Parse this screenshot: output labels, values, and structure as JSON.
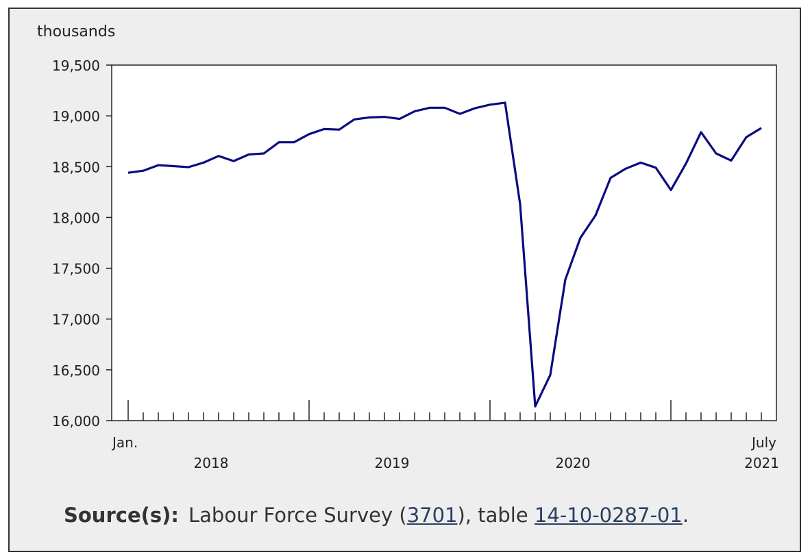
{
  "chart_data": {
    "type": "line",
    "title": "",
    "unit_label": "thousands",
    "ylim": [
      16000,
      19500
    ],
    "yticks": [
      16000,
      16500,
      17000,
      17500,
      18000,
      18500,
      19000,
      19500
    ],
    "ytick_labels": [
      "16,000",
      "16,500",
      "17,000",
      "17,500",
      "18,000",
      "18,500",
      "19,000",
      "19,500"
    ],
    "x_start": "2018-01",
    "x_end": "2021-07",
    "x_labels": {
      "first_month": "Jan.",
      "last_month": "July",
      "years": [
        "2018",
        "2019",
        "2020",
        "2021"
      ]
    },
    "series": [
      {
        "color": "#0b0b80",
        "x": [
          "2018-01",
          "2018-02",
          "2018-03",
          "2018-04",
          "2018-05",
          "2018-06",
          "2018-07",
          "2018-08",
          "2018-09",
          "2018-10",
          "2018-11",
          "2018-12",
          "2019-01",
          "2019-02",
          "2019-03",
          "2019-04",
          "2019-05",
          "2019-06",
          "2019-07",
          "2019-08",
          "2019-09",
          "2019-10",
          "2019-11",
          "2019-12",
          "2020-01",
          "2020-02",
          "2020-03",
          "2020-04",
          "2020-05",
          "2020-06",
          "2020-07",
          "2020-08",
          "2020-09",
          "2020-10",
          "2020-11",
          "2020-12",
          "2021-01",
          "2021-02",
          "2021-03",
          "2021-04",
          "2021-05",
          "2021-06",
          "2021-07"
        ],
        "values": [
          18440,
          18460,
          18515,
          18505,
          18495,
          18540,
          18605,
          18555,
          18620,
          18630,
          18740,
          18740,
          18820,
          18870,
          18865,
          18965,
          18985,
          18990,
          18970,
          19045,
          19080,
          19080,
          19020,
          19075,
          19110,
          19130,
          18130,
          16140,
          16450,
          17390,
          17800,
          18020,
          18390,
          18480,
          18540,
          18490,
          18270,
          18530,
          18840,
          18630,
          18560,
          18790,
          18880
        ]
      }
    ]
  },
  "source": {
    "label": "Source(s):",
    "text_before": "Labour Force Survey (",
    "link1": "3701",
    "text_mid": "), table ",
    "link2": "14-10-0287-01",
    "text_after": "."
  }
}
